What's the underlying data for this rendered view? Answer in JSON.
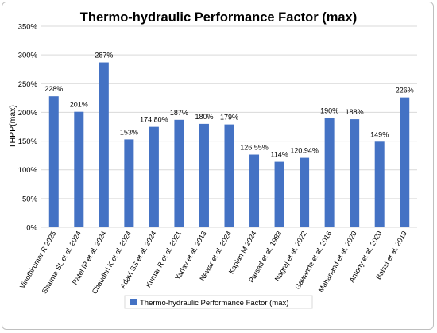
{
  "chart_data": {
    "type": "bar",
    "title": "Thermo-hydraulic Performance Factor (max)",
    "ylabel": "THPP(max)",
    "xlabel": "",
    "ylim": [
      0,
      350
    ],
    "ytick_step": 50,
    "ytick_labels": [
      "0%",
      "50%",
      "100%",
      "150%",
      "200%",
      "250%",
      "300%",
      "350%"
    ],
    "grid": true,
    "legend_position": "bottom",
    "bar_color": "#4472c4",
    "categories": [
      "Vinothkumar R 2025",
      "Sharma SL et al. 2024",
      "Patel IP et al. 2024",
      "Chaudhri K et al. 2024",
      "Adavi SS et al. 2024",
      "Kumar R et al. 2021",
      "Yadav et al. 2013",
      "Newar et al. 2024",
      "Kaplan M 2024",
      "Parsad et al. 1983",
      "Nagraj et al. 2022",
      "Gawande et al. 2016",
      "Mahanand et al. 2020",
      "Antony et al. 2020",
      "Baissi et al. 2019"
    ],
    "series": [
      {
        "name": "Thermo-hydraulic Performance Factor (max)",
        "values": [
          228,
          201,
          287,
          153,
          174.8,
          187,
          180,
          179,
          126.55,
          114,
          120.94,
          190,
          188,
          149,
          226
        ],
        "data_labels": [
          "228%",
          "201%",
          "287%",
          "153%",
          "174.80%",
          "187%",
          "180%",
          "179%",
          "126.55%",
          "114%",
          "120.94%",
          "190%",
          "188%",
          "149%",
          "226%"
        ]
      }
    ]
  }
}
